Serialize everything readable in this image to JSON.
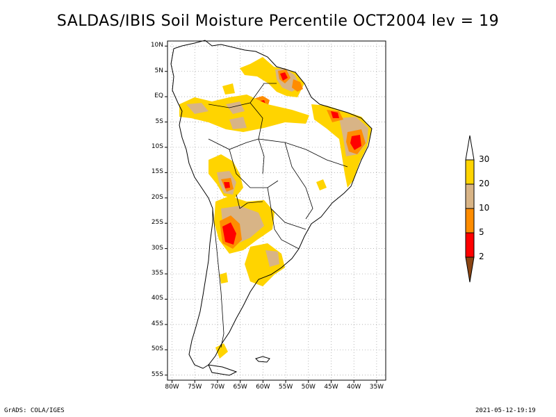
{
  "title": "SALDAS/IBIS Soil Moisture Percentile OCT2004 lev = 19",
  "map": {
    "lat_labels": [
      "10N",
      "5N",
      "EQ",
      "5S",
      "10S",
      "15S",
      "20S",
      "25S",
      "30S",
      "35S",
      "40S",
      "45S",
      "50S",
      "55S"
    ],
    "lon_labels": [
      "80W",
      "75W",
      "70W",
      "65W",
      "60W",
      "55W",
      "50W",
      "45W",
      "40W",
      "35W"
    ],
    "lon_range": [
      -81,
      -33
    ],
    "lat_range": [
      -56,
      11
    ],
    "grid": "dotted"
  },
  "colorbar": {
    "labels": [
      "30",
      "20",
      "10",
      "5",
      "2"
    ],
    "colors": {
      "above30": "#ffffff",
      "c20_30": "#ffd400",
      "c10_20": "#d8b486",
      "c5_10": "#ff8c00",
      "c2_5": "#ff0000",
      "below2": "#8b4513"
    }
  },
  "footer": {
    "left": "GrADS: COLA/IGES",
    "right": "2021-05-12-19:19"
  }
}
